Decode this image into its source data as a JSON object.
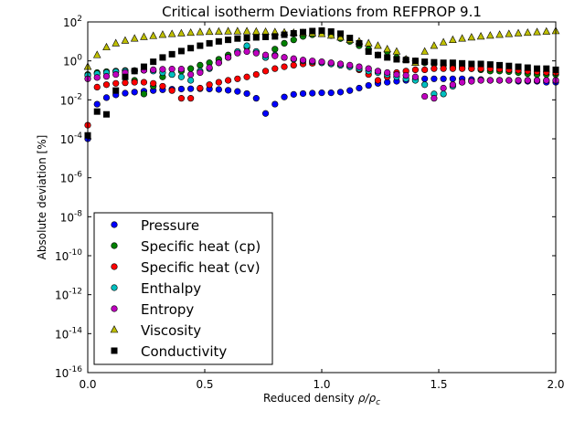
{
  "chart_data": {
    "type": "scatter",
    "title": "Critical isotherm Deviations from REFPROP 9.1",
    "xlabel": "Reduced density",
    "xlabel_math": "ρ/ρ",
    "xlabel_math_sub": "c",
    "ylabel": "Absolute deviation [%]",
    "xlim": [
      0.0,
      2.0
    ],
    "ylog": true,
    "ylim_exp": [
      -16,
      2
    ],
    "x_ticks": [
      "0.0",
      "0.5",
      "1.0",
      "1.5",
      "2.0"
    ],
    "y_tick_exps": [
      2,
      0,
      -2,
      -4,
      -6,
      -8,
      -10,
      -12,
      -14,
      -16
    ],
    "grid": false,
    "legend_position": "lower-left",
    "x": [
      0.0,
      0.04,
      0.08,
      0.12,
      0.16,
      0.2,
      0.24,
      0.28,
      0.32,
      0.36,
      0.4,
      0.44,
      0.48,
      0.52,
      0.56,
      0.6,
      0.64,
      0.68,
      0.72,
      0.76,
      0.8,
      0.84,
      0.88,
      0.92,
      0.96,
      1.0,
      1.04,
      1.08,
      1.12,
      1.16,
      1.2,
      1.24,
      1.28,
      1.32,
      1.36,
      1.4,
      1.44,
      1.48,
      1.52,
      1.56,
      1.6,
      1.64,
      1.68,
      1.72,
      1.76,
      1.8,
      1.84,
      1.88,
      1.92,
      1.96,
      2.0
    ],
    "series": [
      {
        "name": "Pressure",
        "marker": "circle",
        "color": "#0000ff",
        "values": [
          0.0001,
          0.006,
          0.013,
          0.018,
          0.022,
          0.025,
          0.028,
          0.03,
          0.033,
          0.035,
          0.036,
          0.037,
          0.037,
          0.036,
          0.034,
          0.031,
          0.027,
          0.021,
          0.012,
          0.002,
          0.006,
          0.014,
          0.019,
          0.021,
          0.022,
          0.023,
          0.023,
          0.025,
          0.03,
          0.04,
          0.055,
          0.07,
          0.08,
          0.09,
          0.1,
          0.11,
          0.12,
          0.12,
          0.12,
          0.12,
          0.12,
          0.11,
          0.11,
          0.1,
          0.1,
          0.1,
          0.09,
          0.09,
          0.09,
          0.08,
          0.08
        ]
      },
      {
        "name": "Specific heat (cp)",
        "marker": "circle",
        "color": "#008000",
        "values": [
          0.2,
          0.25,
          0.28,
          0.3,
          0.32,
          0.1,
          0.02,
          0.05,
          0.15,
          0.2,
          0.3,
          0.4,
          0.6,
          0.8,
          1.2,
          2,
          3,
          5,
          3,
          1.5,
          4,
          8,
          12,
          18,
          22,
          25,
          20,
          14,
          10,
          6,
          4,
          2,
          3,
          1.5,
          1.2,
          1.0,
          0.8,
          0.7,
          0.6,
          0.5,
          0.45,
          0.4,
          0.35,
          0.3,
          0.3,
          0.28,
          0.25,
          0.22,
          0.2,
          0.2,
          0.2
        ]
      },
      {
        "name": "Specific heat (cv)",
        "marker": "circle",
        "color": "#ff0000",
        "values": [
          0.0005,
          0.045,
          0.06,
          0.07,
          0.075,
          0.08,
          0.08,
          0.07,
          0.05,
          0.03,
          0.012,
          0.012,
          0.04,
          0.06,
          0.08,
          0.1,
          0.12,
          0.15,
          0.2,
          0.3,
          0.4,
          0.5,
          0.6,
          0.7,
          0.75,
          0.8,
          0.7,
          0.6,
          0.5,
          0.35,
          0.2,
          0.1,
          0.15,
          0.25,
          0.3,
          0.35,
          0.35,
          0.4,
          0.4,
          0.4,
          0.4,
          0.4,
          0.4,
          0.4,
          0.38,
          0.35,
          0.33,
          0.3,
          0.28,
          0.26,
          0.25
        ]
      },
      {
        "name": "Enthalpy",
        "marker": "circle",
        "color": "#00bfbf",
        "values": [
          0.18,
          0.22,
          0.25,
          0.28,
          0.3,
          0.32,
          0.33,
          0.3,
          0.25,
          0.2,
          0.15,
          0.1,
          0.3,
          0.4,
          0.8,
          1.5,
          3,
          6,
          3,
          1.5,
          2,
          1.5,
          1.2,
          1.0,
          0.9,
          0.8,
          0.7,
          0.6,
          0.5,
          0.4,
          0.3,
          0.25,
          0.2,
          0.15,
          0.12,
          0.1,
          0.06,
          0.02,
          0.02,
          0.05,
          0.08,
          0.09,
          0.1,
          0.1,
          0.1,
          0.1,
          0.1,
          0.1,
          0.1,
          0.1,
          0.1
        ]
      },
      {
        "name": "Entropy",
        "marker": "circle",
        "color": "#bf00bf",
        "values": [
          0.12,
          0.14,
          0.16,
          0.2,
          0.25,
          0.3,
          0.33,
          0.35,
          0.37,
          0.38,
          0.38,
          0.2,
          0.25,
          0.45,
          0.8,
          1.5,
          2.5,
          3,
          2.5,
          2,
          1.8,
          1.5,
          1.3,
          1.1,
          1.0,
          0.9,
          0.8,
          0.7,
          0.6,
          0.5,
          0.4,
          0.3,
          0.25,
          0.2,
          0.18,
          0.15,
          0.015,
          0.012,
          0.04,
          0.06,
          0.08,
          0.09,
          0.1,
          0.1,
          0.1,
          0.1,
          0.1,
          0.1,
          0.1,
          0.1,
          0.1
        ]
      },
      {
        "name": "Viscosity",
        "marker": "triangle",
        "color": "#bfbf00",
        "values": [
          0.5,
          2,
          5,
          8,
          11,
          14,
          17,
          19,
          22,
          24,
          26,
          28,
          30,
          31,
          32,
          33,
          33,
          33,
          32,
          31,
          30,
          29,
          28,
          27,
          26,
          24,
          20,
          16,
          12,
          10,
          8,
          6,
          4,
          3,
          1.2,
          0.8,
          3,
          6,
          9,
          12,
          14,
          16,
          18,
          20,
          22,
          24,
          26,
          28,
          30,
          32,
          34
        ]
      },
      {
        "name": "Conductivity",
        "marker": "square",
        "color": "#000000",
        "values": [
          0.00015,
          0.0025,
          0.0018,
          0.03,
          0.15,
          0.3,
          0.5,
          0.9,
          1.5,
          2.2,
          3.2,
          4.5,
          6,
          8,
          10,
          12,
          14,
          15,
          16,
          17,
          18,
          22,
          26,
          30,
          34,
          36,
          32,
          25,
          15,
          8,
          3,
          2,
          1.5,
          1.2,
          1.1,
          1.0,
          0.9,
          0.85,
          0.8,
          0.8,
          0.75,
          0.7,
          0.7,
          0.65,
          0.6,
          0.55,
          0.5,
          0.45,
          0.4,
          0.4,
          0.35
        ]
      }
    ]
  }
}
